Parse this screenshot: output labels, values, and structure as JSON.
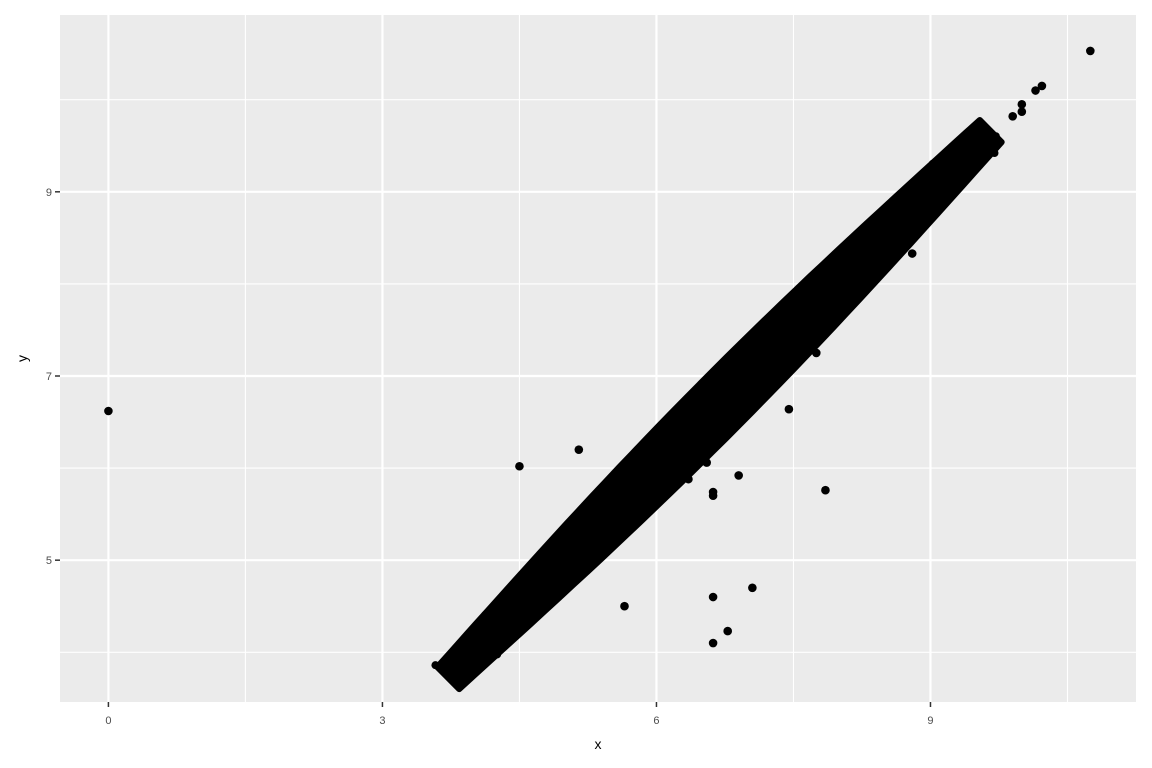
{
  "chart_data": {
    "type": "scatter",
    "title": "",
    "xlabel": "x",
    "ylabel": "y",
    "xlim": [
      -0.53,
      11.25
    ],
    "ylim": [
      3.46,
      10.92
    ],
    "x_ticks": [
      0,
      3,
      6,
      9
    ],
    "y_ticks": [
      5,
      7,
      9
    ],
    "grid": true,
    "legend": "none",
    "colors": {
      "panel": "#ebebeb",
      "grid": "#ffffff",
      "point": "#000000",
      "tick": "#333333",
      "tick_label": "#4d4d4d"
    },
    "dense_band": {
      "description_of_range": "points clustered tightly along y = x",
      "x_range": [
        3.72,
        9.66
      ],
      "y_range": [
        3.72,
        9.66
      ]
    },
    "points": [
      {
        "x": 0.0,
        "y": 6.62
      },
      {
        "x": 4.5,
        "y": 6.02
      },
      {
        "x": 5.15,
        "y": 6.2
      },
      {
        "x": 4.8,
        "y": 5.12
      },
      {
        "x": 4.78,
        "y": 4.76
      },
      {
        "x": 5.65,
        "y": 4.5
      },
      {
        "x": 6.55,
        "y": 6.06
      },
      {
        "x": 6.35,
        "y": 5.88
      },
      {
        "x": 6.62,
        "y": 5.74
      },
      {
        "x": 6.62,
        "y": 5.7
      },
      {
        "x": 6.9,
        "y": 5.92
      },
      {
        "x": 6.62,
        "y": 4.6
      },
      {
        "x": 6.62,
        "y": 4.1
      },
      {
        "x": 6.78,
        "y": 4.23
      },
      {
        "x": 7.05,
        "y": 4.7
      },
      {
        "x": 7.45,
        "y": 6.64
      },
      {
        "x": 7.85,
        "y": 5.76
      },
      {
        "x": 7.75,
        "y": 7.25
      },
      {
        "x": 8.8,
        "y": 8.33
      },
      {
        "x": 9.6,
        "y": 9.6
      },
      {
        "x": 9.9,
        "y": 9.82
      },
      {
        "x": 10.0,
        "y": 9.87
      },
      {
        "x": 10.0,
        "y": 9.95
      },
      {
        "x": 10.15,
        "y": 10.1
      },
      {
        "x": 10.22,
        "y": 10.15
      },
      {
        "x": 10.75,
        "y": 10.53
      }
    ]
  }
}
